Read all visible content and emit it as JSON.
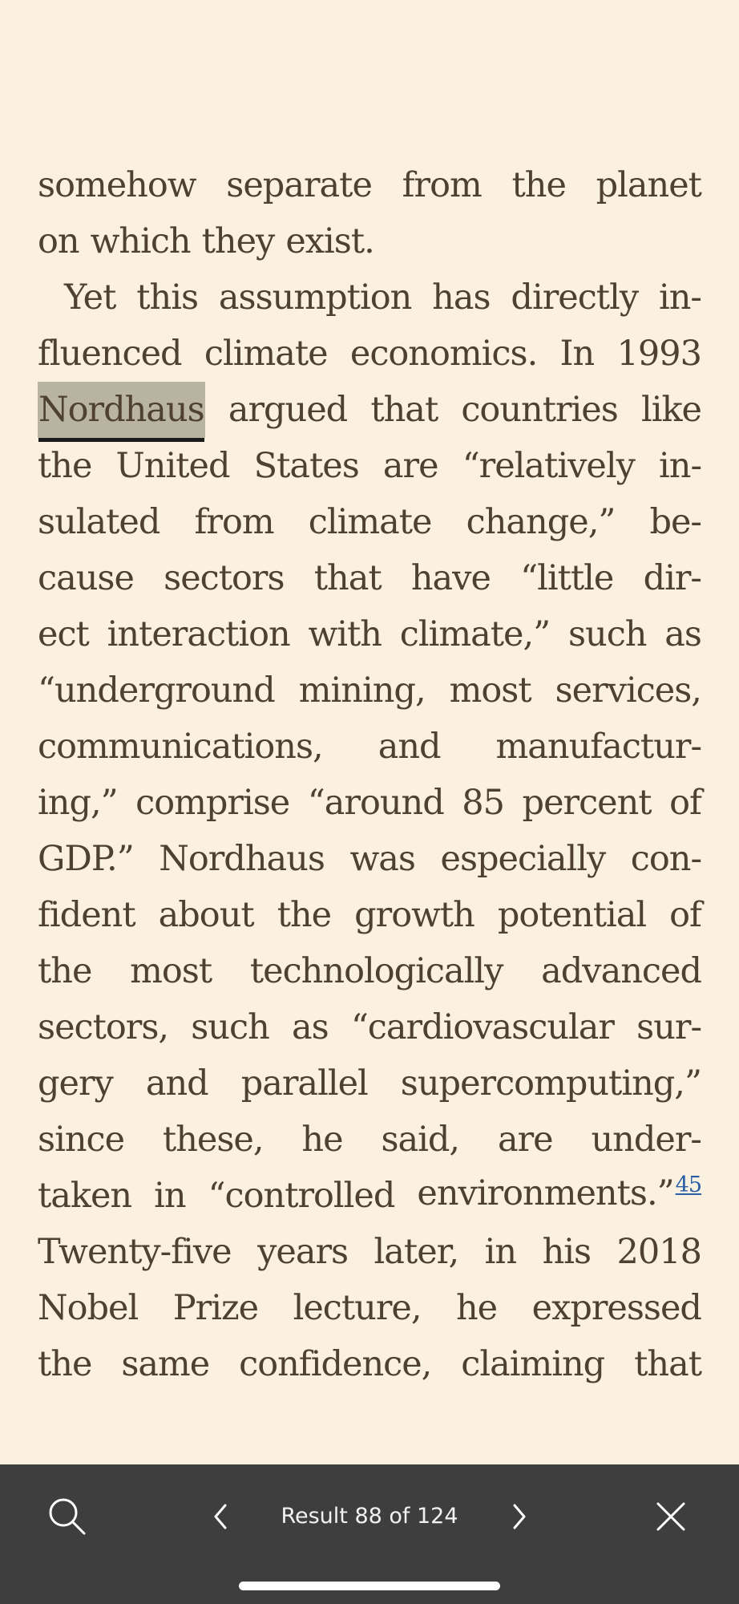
{
  "book_text": {
    "lines": [
      [
        "somehow",
        "separate",
        "from",
        "the",
        "planet"
      ],
      [
        "on",
        "which",
        "they",
        "exist."
      ],
      [
        "Yet",
        "this",
        "assumption",
        "has",
        "directly",
        "in-"
      ],
      [
        "fluenced",
        "climate",
        "economics.",
        "In",
        "1993"
      ],
      [
        "Nordhaus",
        "argued",
        "that",
        "countries",
        "like"
      ],
      [
        "the",
        "United",
        "States",
        "are",
        "“relatively",
        "in-"
      ],
      [
        "sulated",
        "from",
        "climate",
        "change,”",
        "be-"
      ],
      [
        "cause",
        "sectors",
        "that",
        "have",
        "“little",
        "dir-"
      ],
      [
        "ect",
        "interaction",
        "with",
        "climate,”",
        "such",
        "as"
      ],
      [
        "“underground",
        "mining,",
        "most",
        "services,"
      ],
      [
        "communications,",
        "and",
        "manufactur-"
      ],
      [
        "ing,”",
        "comprise",
        "“around",
        "85",
        "percent",
        "of"
      ],
      [
        "GDP.”",
        "Nordhaus",
        "was",
        "especially",
        "con-"
      ],
      [
        "fident",
        "about",
        "the",
        "growth",
        "potential",
        "of"
      ],
      [
        "the",
        "most",
        "technologically",
        "advanced"
      ],
      [
        "sectors,",
        "such",
        "as",
        "“cardiovascular",
        "sur-"
      ],
      [
        "gery",
        "and",
        "parallel",
        "supercomputing,”"
      ],
      [
        "since",
        "these,",
        "he",
        "said,",
        "are",
        "under-"
      ],
      [
        "taken",
        "in",
        "“controlled",
        "environments.”"
      ],
      [
        "Twenty-five",
        "years",
        "later,",
        "in",
        "his",
        "2018"
      ],
      [
        "Nobel",
        "Prize",
        "lecture,",
        "he",
        "expressed"
      ],
      [
        "the",
        "same",
        "confidence,",
        "claiming",
        "that"
      ]
    ],
    "footnote_marker": "45"
  },
  "search": {
    "highlighted_term": "Nordhaus",
    "result_text": "Result 88 of 124",
    "search_icon": "search-icon",
    "previous_icon": "chevron-left-icon",
    "next_icon": "chevron-right-icon",
    "close_icon": "close-icon"
  },
  "theme": {
    "page_background": "#faf1e0",
    "text_color": "#4e4033",
    "highlight_color": "#b9b4a1",
    "toolbar_background": "#3e3e3e",
    "toolbar_text_color": "#f2f2f2",
    "footnote_color": "#2b5ea8"
  }
}
